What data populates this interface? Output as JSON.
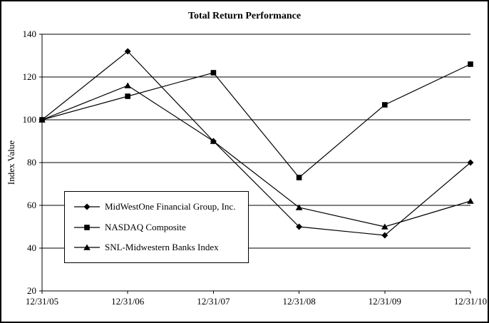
{
  "chart_data": {
    "type": "line",
    "title": "Total Return Performance",
    "xlabel": "",
    "ylabel": "Index Value",
    "ylim": [
      20,
      140
    ],
    "ytick_step": 20,
    "grid": true,
    "legend_position": "inside-bottom-left",
    "categories": [
      "12/31/05",
      "12/31/06",
      "12/31/07",
      "12/31/08",
      "12/31/09",
      "12/31/10"
    ],
    "series": [
      {
        "name": "MidWestOne Financial Group, Inc.",
        "marker": "diamond",
        "values": [
          100,
          132,
          90,
          50,
          46,
          80
        ]
      },
      {
        "name": "NASDAQ Composite",
        "marker": "square",
        "values": [
          100,
          111,
          122,
          73,
          107,
          126
        ]
      },
      {
        "name": "SNL-Midwestern Banks Index",
        "marker": "triangle",
        "values": [
          100,
          116,
          90,
          59,
          50,
          62
        ]
      }
    ],
    "colors": {
      "line": "#000000",
      "background": "#ffffff",
      "frame_border": "#000000"
    }
  }
}
